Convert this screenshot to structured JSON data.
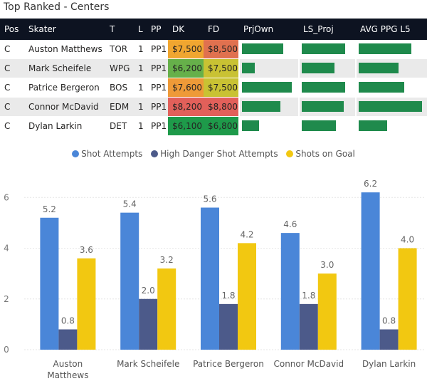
{
  "title": "Top Ranked - Centers",
  "table": {
    "columns": [
      "Pos",
      "Skater",
      "T",
      "L",
      "PP",
      "DK",
      "FD",
      "PrjOwn",
      "LS_Proj",
      "AVG PPG L5"
    ],
    "rows": [
      {
        "pos": "C",
        "skater": "Auston Matthews",
        "team": "TOR",
        "line": "1",
        "pp": "PP1",
        "dk": "$7,500",
        "fd": "$8,500",
        "dk_color": "#f0a630",
        "fd_color": "#e0714f",
        "prjown": 0.73,
        "ls_proj": 0.82,
        "avg_ppg": 0.8
      },
      {
        "pos": "C",
        "skater": "Mark Scheifele",
        "team": "WPG",
        "line": "1",
        "pp": "PP1",
        "dk": "$6,200",
        "fd": "$7,500",
        "dk_color": "#66b04a",
        "fd_color": "#c9c233",
        "prjown": 0.23,
        "ls_proj": 0.62,
        "avg_ppg": 0.61
      },
      {
        "pos": "C",
        "skater": "Patrice Bergeron",
        "team": "BOS",
        "line": "1",
        "pp": "PP1",
        "dk": "$7,600",
        "fd": "$7,500",
        "dk_color": "#ee9a38",
        "fd_color": "#c9c233",
        "prjown": 0.87,
        "ls_proj": 0.83,
        "avg_ppg": 0.7
      },
      {
        "pos": "C",
        "skater": "Connor McDavid",
        "team": "EDM",
        "line": "1",
        "pp": "PP1",
        "dk": "$8,200",
        "fd": "$8,800",
        "dk_color": "#e2605a",
        "fd_color": "#e2605a",
        "prjown": 0.67,
        "ls_proj": 0.8,
        "avg_ppg": 0.97
      },
      {
        "pos": "C",
        "skater": "Dylan Larkin",
        "team": "DET",
        "line": "1",
        "pp": "PP1",
        "dk": "$6,100",
        "fd": "$6,800",
        "dk_color": "#1e9a4a",
        "fd_color": "#1e9a4a",
        "prjown": 0.3,
        "ls_proj": 0.65,
        "avg_ppg": 0.44
      }
    ]
  },
  "chart_data": {
    "type": "bar",
    "categories": [
      "Auston Matthews",
      "Mark Scheifele",
      "Patrice Bergeron",
      "Connor McDavid",
      "Dylan Larkin"
    ],
    "category_lines": [
      [
        "Auston",
        "Matthews"
      ],
      [
        "Mark Scheifele"
      ],
      [
        "Patrice Bergeron"
      ],
      [
        "Connor McDavid"
      ],
      [
        "Dylan Larkin"
      ]
    ],
    "series": [
      {
        "name": "Shot Attempts",
        "color": "#4a86d8",
        "values": [
          5.2,
          5.4,
          5.6,
          4.6,
          6.2
        ]
      },
      {
        "name": "High Danger Shot Attempts",
        "color": "#4c5a8a",
        "values": [
          0.8,
          2.0,
          1.8,
          1.8,
          0.8
        ]
      },
      {
        "name": "Shots on Goal",
        "color": "#f2c811",
        "values": [
          3.6,
          3.2,
          4.2,
          3.0,
          4.0
        ]
      }
    ],
    "value_labels": [
      [
        "5.2",
        "5.4",
        "5.6",
        "4.6",
        "6.2"
      ],
      [
        "0.8",
        "2.0",
        "1.8",
        "1.8",
        "0.8"
      ],
      [
        "3.6",
        "3.2",
        "4.2",
        "3.0",
        "4.0"
      ]
    ],
    "yticks": [
      0,
      2,
      4,
      6
    ],
    "ytick_labels": [
      "0",
      "2",
      "4",
      "6"
    ],
    "ylim": [
      0,
      6.4
    ],
    "legend_position": "top-center"
  }
}
